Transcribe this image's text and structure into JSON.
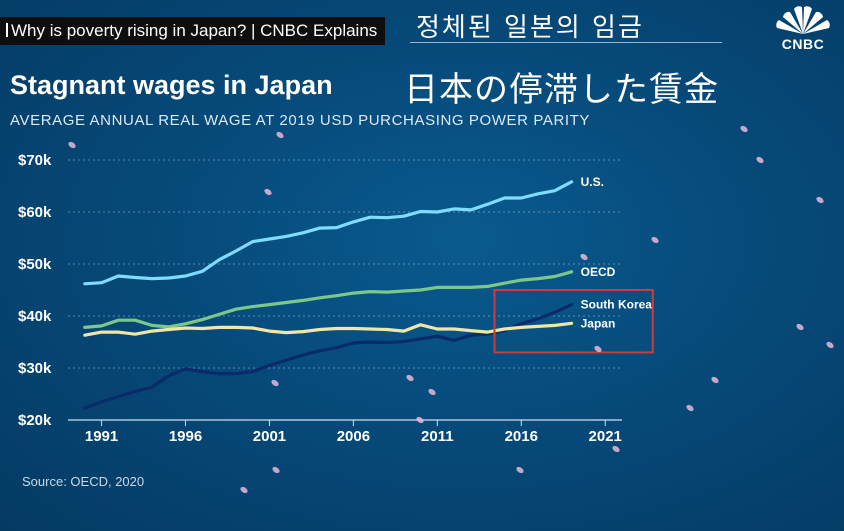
{
  "video": {
    "title": "Why is poverty rising in Japan? | CNBC Explains",
    "korean_caption": "정체된  일본의 임금",
    "japanese_caption": "日本の停滞した賃金",
    "brand": "CNBC"
  },
  "colors": {
    "us": "#7fdcff",
    "oecd": "#7cc78a",
    "south_korea": "#0b2a6a",
    "japan": "#f0e6a8",
    "highlight_box": "#d23a3a"
  },
  "chart_data": {
    "type": "line",
    "title": "Stagnant wages in Japan",
    "subtitle": "AVERAGE ANNUAL REAL WAGE AT 2019 USD PURCHASING POWER PARITY",
    "source": "Source: OECD, 2020",
    "xlim": [
      1989,
      2022
    ],
    "ylim": [
      20000,
      70000
    ],
    "y_ticks": [
      {
        "value": 20000,
        "label": "$20k"
      },
      {
        "value": 30000,
        "label": "$30k"
      },
      {
        "value": 40000,
        "label": "$40k"
      },
      {
        "value": 50000,
        "label": "$50k"
      },
      {
        "value": 60000,
        "label": "$60k"
      },
      {
        "value": 70000,
        "label": "$70k"
      }
    ],
    "x_ticks": [
      1991,
      1996,
      2001,
      2006,
      2011,
      2016,
      2021
    ],
    "grid": true,
    "series": [
      {
        "name": "U.S.",
        "color_key": "us",
        "x": [
          1990,
          1991,
          1992,
          1993,
          1994,
          1995,
          1996,
          1997,
          1998,
          1999,
          2000,
          2001,
          2002,
          2003,
          2004,
          2005,
          2006,
          2007,
          2008,
          2009,
          2010,
          2011,
          2012,
          2013,
          2014,
          2015,
          2016,
          2017,
          2018,
          2019
        ],
        "y": [
          46200,
          46400,
          47700,
          47400,
          47200,
          47300,
          47700,
          48600,
          50800,
          52500,
          54300,
          54800,
          55300,
          56000,
          56900,
          57000,
          58100,
          59000,
          58900,
          59200,
          60100,
          60000,
          60600,
          60400,
          61500,
          62700,
          62700,
          63500,
          64100,
          65800
        ]
      },
      {
        "name": "OECD",
        "color_key": "oecd",
        "x": [
          1990,
          1991,
          1992,
          1993,
          1994,
          1995,
          1996,
          1997,
          1998,
          1999,
          2000,
          2001,
          2002,
          2003,
          2004,
          2005,
          2006,
          2007,
          2008,
          2009,
          2010,
          2011,
          2012,
          2013,
          2014,
          2015,
          2016,
          2017,
          2018,
          2019
        ],
        "y": [
          37800,
          38100,
          39200,
          39200,
          38200,
          37900,
          38500,
          39300,
          40300,
          41300,
          41800,
          42200,
          42600,
          43000,
          43500,
          43900,
          44400,
          44700,
          44600,
          44800,
          45000,
          45500,
          45500,
          45500,
          45700,
          46300,
          46900,
          47200,
          47600,
          48500
        ]
      },
      {
        "name": "South Korea",
        "color_key": "south_korea",
        "x": [
          1990,
          1991,
          1992,
          1993,
          1994,
          1995,
          1996,
          1997,
          1998,
          1999,
          2000,
          2001,
          2002,
          2003,
          2004,
          2005,
          2006,
          2007,
          2008,
          2009,
          2010,
          2011,
          2012,
          2013,
          2014,
          2015,
          2016,
          2017,
          2018,
          2019
        ],
        "y": [
          22300,
          23500,
          24500,
          25500,
          26300,
          28500,
          29800,
          29300,
          28900,
          28900,
          29300,
          30500,
          31500,
          32500,
          33300,
          33900,
          34800,
          35000,
          34900,
          35100,
          35600,
          36100,
          35300,
          36300,
          36500,
          37200,
          38500,
          39500,
          40700,
          42200
        ]
      },
      {
        "name": "Japan",
        "color_key": "japan",
        "x": [
          1990,
          1991,
          1992,
          1993,
          1994,
          1995,
          1996,
          1997,
          1998,
          1999,
          2000,
          2001,
          2002,
          2003,
          2004,
          2005,
          2006,
          2007,
          2008,
          2009,
          2010,
          2011,
          2012,
          2013,
          2014,
          2015,
          2016,
          2017,
          2018,
          2019
        ],
        "y": [
          36300,
          36900,
          36900,
          36500,
          37100,
          37400,
          37700,
          37600,
          37800,
          37800,
          37700,
          37100,
          36800,
          37000,
          37400,
          37600,
          37600,
          37500,
          37400,
          37100,
          38300,
          37500,
          37500,
          37200,
          36900,
          37500,
          37800,
          38000,
          38200,
          38600
        ]
      }
    ],
    "series_labels": [
      "U.S.",
      "OECD",
      "South Korea",
      "Japan"
    ],
    "highlight_box": {
      "x_range": [
        2015,
        2023
      ],
      "y_range": [
        33000,
        45000
      ]
    }
  }
}
